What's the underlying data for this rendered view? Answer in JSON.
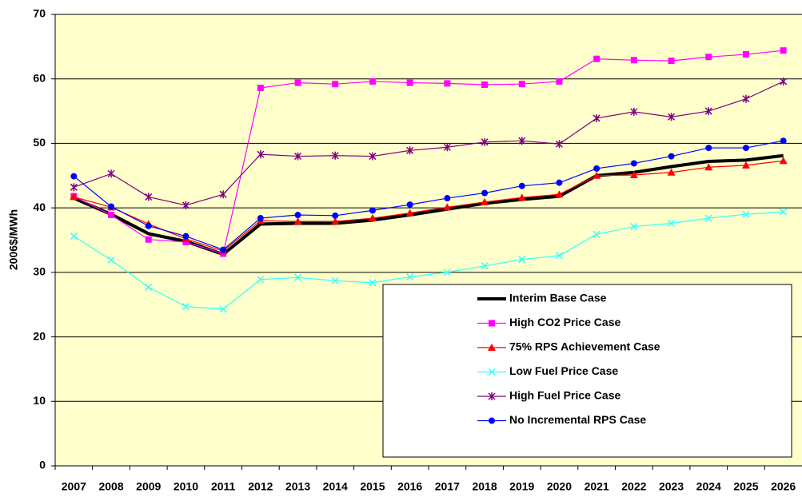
{
  "chart_data": {
    "type": "line",
    "y_label": "2006$/MWh",
    "categories": [
      "2007",
      "2008",
      "2009",
      "2010",
      "2011",
      "2012",
      "2013",
      "2014",
      "2015",
      "2016",
      "2017",
      "2018",
      "2019",
      "2020",
      "2021",
      "2022",
      "2023",
      "2024",
      "2025",
      "2026"
    ],
    "ylim": [
      0,
      70
    ],
    "yticks": [
      0,
      10,
      20,
      30,
      40,
      50,
      60,
      70
    ],
    "grid": true,
    "series": [
      {
        "name": "Interim Base Case",
        "color": "#000000",
        "marker": "none",
        "values": [
          41.5,
          39,
          36,
          34.8,
          32.8,
          37.5,
          37.6,
          37.6,
          38.1,
          38.9,
          39.8,
          40.7,
          41.3,
          41.8,
          45,
          45.5,
          46.4,
          47.2,
          47.4,
          48.1
        ]
      },
      {
        "name": "High CO2 Price Case",
        "color": "#ff00ff",
        "marker": "square",
        "values": [
          41.8,
          38.9,
          35.1,
          34.7,
          32.9,
          58.6,
          59.4,
          59.2,
          59.6,
          59.4,
          59.3,
          59.1,
          59.2,
          59.6,
          63.1,
          62.9,
          62.8,
          63.4,
          63.8,
          64.4
        ]
      },
      {
        "name": "75% RPS Achievement Case",
        "color": "#ff0000",
        "marker": "triangle",
        "values": [
          41.7,
          40.1,
          37.5,
          35.2,
          33.3,
          38,
          37.9,
          37.9,
          38.4,
          39.2,
          40.1,
          40.9,
          41.6,
          42.1,
          45,
          45.1,
          45.5,
          46.3,
          46.6,
          47.3
        ]
      },
      {
        "name": "Low Fuel Price Case",
        "color": "#33ffff",
        "marker": "x",
        "values": [
          35.6,
          31.9,
          27.7,
          24.7,
          24.3,
          28.9,
          29.2,
          28.7,
          28.4,
          29.3,
          30,
          31,
          32,
          32.6,
          35.9,
          37.1,
          37.6,
          38.4,
          39,
          39.4
        ]
      },
      {
        "name": "High Fuel Price Case",
        "color": "#800080",
        "marker": "star",
        "values": [
          43.2,
          45.3,
          41.7,
          40.4,
          42.1,
          48.3,
          48,
          48.1,
          48,
          48.9,
          49.4,
          50.2,
          50.4,
          49.9,
          53.9,
          54.9,
          54.1,
          55,
          56.9,
          59.6
        ]
      },
      {
        "name": "No Incremental RPS Case",
        "color": "#0000ff",
        "marker": "circle",
        "values": [
          44.9,
          40.2,
          37.2,
          35.6,
          33.5,
          38.4,
          38.9,
          38.8,
          39.6,
          40.5,
          41.5,
          42.3,
          43.4,
          43.9,
          46.1,
          46.9,
          48,
          49.3,
          49.3,
          50.4
        ]
      }
    ]
  }
}
